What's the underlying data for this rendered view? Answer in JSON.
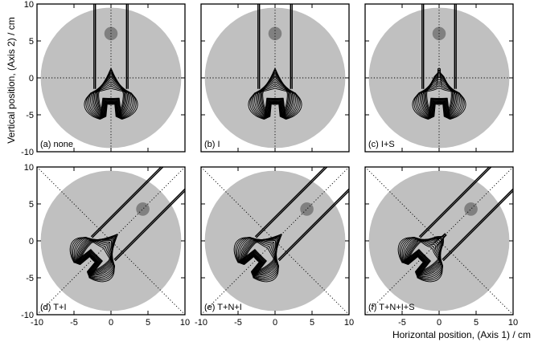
{
  "figure": {
    "ylabel": "Vertical position, (Axis 2) / cm",
    "xlabel": "Horizontal position, (Axis 1) / cm",
    "colors": {
      "disk": "#c0c0c0",
      "target": "#808080",
      "contour": "#000000",
      "frame": "#000000"
    }
  },
  "chart_data": [
    {
      "type": "contour",
      "label": "(a) none",
      "rotation_deg": 0,
      "xlim": [
        -10,
        10
      ],
      "ylim": [
        -10,
        10
      ],
      "grid": true,
      "xticks": [],
      "yticks": [
        "10",
        "5",
        "0",
        "-5",
        "-10"
      ],
      "disk": {
        "center": [
          0,
          0
        ],
        "radius": 9.5
      },
      "target": {
        "center": [
          0,
          6
        ],
        "radius": 0.9
      }
    },
    {
      "type": "contour",
      "label": "(b) I",
      "rotation_deg": 0,
      "xlim": [
        -10,
        10
      ],
      "ylim": [
        -10,
        10
      ],
      "grid": true,
      "xticks": [],
      "yticks": [],
      "disk": {
        "center": [
          0,
          0
        ],
        "radius": 9.5
      },
      "target": {
        "center": [
          0,
          6
        ],
        "radius": 0.9
      }
    },
    {
      "type": "contour",
      "label": "(c) I+S",
      "rotation_deg": 0,
      "xlim": [
        -10,
        10
      ],
      "ylim": [
        -10,
        10
      ],
      "grid": true,
      "xticks": [],
      "yticks": [],
      "disk": {
        "center": [
          0,
          0
        ],
        "radius": 9.5
      },
      "target": {
        "center": [
          0,
          6
        ],
        "radius": 0.9
      }
    },
    {
      "type": "contour",
      "label": "(d) T+I",
      "rotation_deg": 45,
      "xlim": [
        -10,
        10
      ],
      "ylim": [
        -10,
        10
      ],
      "grid": true,
      "xticks": [
        "-10",
        "-5",
        "0",
        "5",
        "10"
      ],
      "yticks": [
        "10",
        "5",
        "0",
        "-5",
        "-10"
      ],
      "disk": {
        "center": [
          0,
          0
        ],
        "radius": 9.5
      },
      "target": {
        "center": [
          4.3,
          4.3
        ],
        "radius": 0.9
      }
    },
    {
      "type": "contour",
      "label": "(e) T+N+I",
      "rotation_deg": 45,
      "xlim": [
        -10,
        10
      ],
      "ylim": [
        -10,
        10
      ],
      "grid": true,
      "xticks": [
        "-10",
        "-5",
        "0",
        "5",
        "10"
      ],
      "yticks": [],
      "disk": {
        "center": [
          0,
          0
        ],
        "radius": 9.5
      },
      "target": {
        "center": [
          4.3,
          4.3
        ],
        "radius": 0.9
      }
    },
    {
      "type": "contour",
      "label": "(f) T+N+I+S",
      "rotation_deg": 45,
      "xlim": [
        -10,
        10
      ],
      "ylim": [
        -10,
        10
      ],
      "grid": true,
      "xticks": [
        "-5",
        "0",
        "5",
        "10"
      ],
      "yticks": [],
      "disk": {
        "center": [
          0,
          0
        ],
        "radius": 9.5
      },
      "target": {
        "center": [
          4.3,
          4.3
        ],
        "radius": 0.9
      }
    }
  ]
}
